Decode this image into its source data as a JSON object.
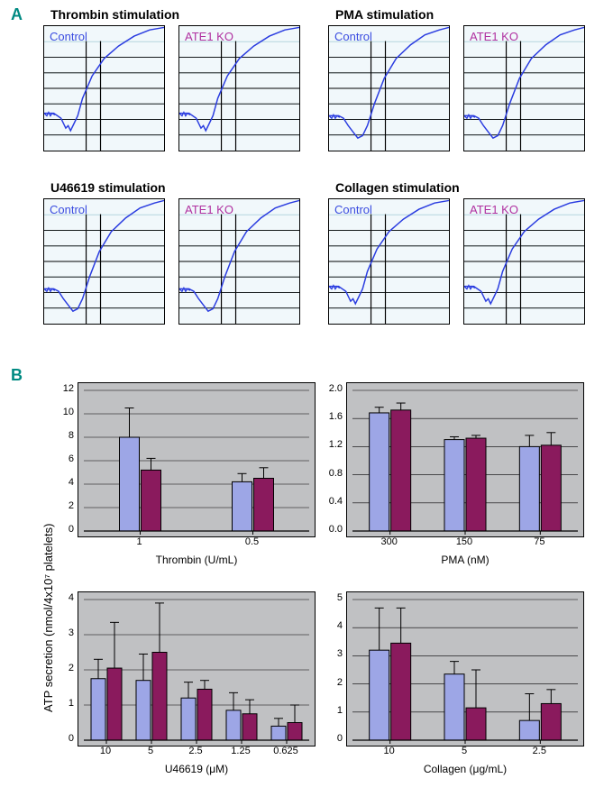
{
  "colors": {
    "control_fill": "#9da6e6",
    "ko_fill": "#8a1a5d",
    "bar_stroke": "#000000",
    "chart_bg": "#c0c1c3",
    "trace_bg": "#f1f8fb",
    "trace_line": "#2a3ce0",
    "grid_major": "#000000",
    "grid_minor": "#b5d5de",
    "panel_letter_color": "#008a82"
  },
  "sectionA": {
    "panel_letter": "A",
    "groups": [
      {
        "title": "Thrombin stimulation",
        "pair": [
          "Control",
          "ATE1 KO"
        ]
      },
      {
        "title": "PMA stimulation",
        "pair": [
          "Control",
          "ATE1 KO"
        ]
      },
      {
        "title": "U46619 stimulation",
        "pair": [
          "Control",
          "ATE1 KO"
        ]
      },
      {
        "title": "Collagen stimulation",
        "pair": [
          "Control",
          "ATE1 KO"
        ]
      }
    ],
    "trace_curves": {
      "standard": [
        [
          0,
          0.7
        ],
        [
          0.08,
          0.7
        ],
        [
          0.14,
          0.74
        ],
        [
          0.18,
          0.82
        ],
        [
          0.2,
          0.8
        ],
        [
          0.22,
          0.84
        ],
        [
          0.25,
          0.78
        ],
        [
          0.28,
          0.72
        ],
        [
          0.32,
          0.58
        ],
        [
          0.4,
          0.4
        ],
        [
          0.5,
          0.26
        ],
        [
          0.62,
          0.16
        ],
        [
          0.75,
          0.08
        ],
        [
          0.88,
          0.03
        ],
        [
          1.0,
          0.01
        ]
      ],
      "with_dip": [
        [
          0,
          0.72
        ],
        [
          0.08,
          0.72
        ],
        [
          0.12,
          0.74
        ],
        [
          0.16,
          0.8
        ],
        [
          0.2,
          0.85
        ],
        [
          0.24,
          0.9
        ],
        [
          0.28,
          0.88
        ],
        [
          0.32,
          0.8
        ],
        [
          0.38,
          0.62
        ],
        [
          0.46,
          0.42
        ],
        [
          0.56,
          0.26
        ],
        [
          0.68,
          0.15
        ],
        [
          0.8,
          0.07
        ],
        [
          0.92,
          0.03
        ],
        [
          1.0,
          0.01
        ]
      ]
    }
  },
  "sectionB": {
    "panel_letter": "B",
    "y_axis_label": "ATP secretion (nmol/4x10⁷ platelets)",
    "legend": {
      "control": "Control",
      "ko": "ATE1 KO"
    },
    "charts": [
      {
        "id": "thrombin",
        "x_label": "Thrombin (U/mL)",
        "ylim": [
          0,
          12
        ],
        "ytick_step": 2,
        "categories": [
          "1",
          "0.5"
        ],
        "control": {
          "values": [
            8.0,
            4.2
          ],
          "err": [
            2.5,
            0.7
          ]
        },
        "ko": {
          "values": [
            5.2,
            4.5
          ],
          "err": [
            1.0,
            0.9
          ]
        }
      },
      {
        "id": "pma",
        "x_label": "PMA (nM)",
        "ylim": [
          0,
          2.0
        ],
        "ytick_step": 0.4,
        "categories": [
          "300",
          "150",
          "75"
        ],
        "control": {
          "values": [
            1.68,
            1.3,
            1.2
          ],
          "err": [
            0.08,
            0.04,
            0.16
          ]
        },
        "ko": {
          "values": [
            1.72,
            1.32,
            1.22
          ],
          "err": [
            0.1,
            0.04,
            0.18
          ]
        }
      },
      {
        "id": "u46619",
        "x_label": "U46619 (μM)",
        "ylim": [
          0,
          4
        ],
        "ytick_step": 1,
        "categories": [
          "10",
          "5",
          "2.5",
          "1.25",
          "0.625"
        ],
        "control": {
          "values": [
            1.75,
            1.7,
            1.2,
            0.85,
            0.4
          ],
          "err": [
            0.55,
            0.75,
            0.45,
            0.5,
            0.22
          ]
        },
        "ko": {
          "values": [
            2.05,
            2.5,
            1.45,
            0.75,
            0.5
          ],
          "err": [
            1.3,
            1.4,
            0.25,
            0.4,
            0.5
          ]
        }
      },
      {
        "id": "collagen",
        "x_label": "Collagen (μg/mL)",
        "ylim": [
          0,
          5
        ],
        "ytick_step": 1,
        "categories": [
          "10",
          "5",
          "2.5"
        ],
        "control": {
          "values": [
            3.2,
            2.35,
            0.7
          ],
          "err": [
            1.5,
            0.45,
            0.95
          ]
        },
        "ko": {
          "values": [
            3.45,
            1.15,
            1.3
          ],
          "err": [
            1.25,
            1.35,
            0.5
          ]
        }
      }
    ]
  }
}
